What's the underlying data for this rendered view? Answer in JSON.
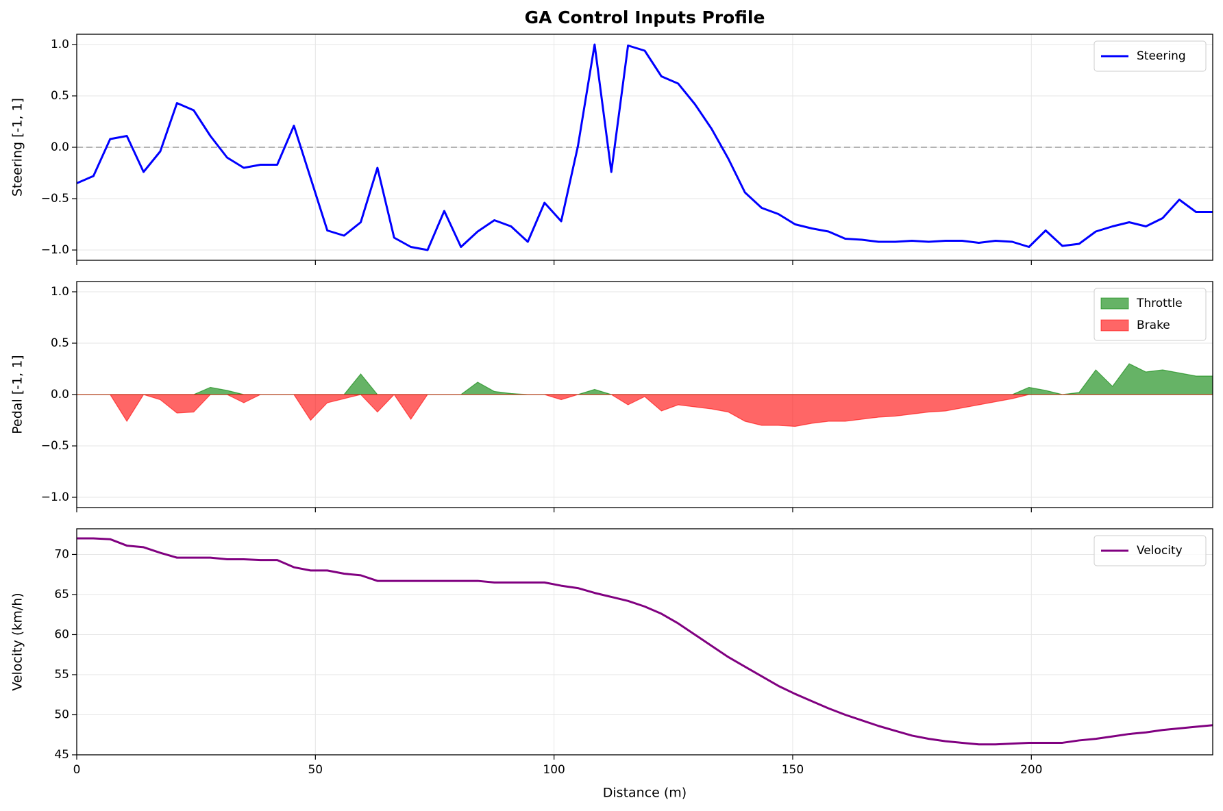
{
  "chart_data": [
    {
      "type": "line",
      "title": "GA Control Inputs Profile",
      "ylabel": "Steering [-1, 1]",
      "x": [
        0,
        3.5,
        7,
        10.5,
        14,
        17.5,
        21,
        24.5,
        28,
        31.5,
        35,
        38.5,
        42,
        45.5,
        49,
        52.5,
        56,
        59.5,
        63,
        66.5,
        70,
        73.5,
        77,
        80.5,
        84,
        87.5,
        91,
        94.5,
        98,
        101.5,
        105,
        108.5,
        112,
        115.5,
        119,
        122.5,
        126,
        129.5,
        133,
        136.5,
        140,
        143.5,
        147,
        150.5,
        154,
        157.5,
        161,
        164.5,
        168,
        171.5,
        175,
        178.5,
        182,
        185.5,
        189,
        192.5,
        196,
        199.5,
        203,
        206.5,
        210,
        213.5,
        217,
        220.5,
        224,
        227.5,
        231,
        234.5,
        238
      ],
      "series": [
        {
          "name": "Steering",
          "color": "#0000ff",
          "values": [
            -0.35,
            -0.28,
            0.08,
            0.11,
            -0.24,
            -0.04,
            0.43,
            0.36,
            0.11,
            -0.1,
            -0.2,
            -0.17,
            -0.17,
            0.21,
            -0.3,
            -0.81,
            -0.86,
            -0.73,
            -0.2,
            -0.88,
            -0.97,
            -1.0,
            -0.62,
            -0.97,
            -0.82,
            -0.71,
            -0.77,
            -0.92,
            -0.54,
            -0.72,
            0.01,
            1.0,
            -0.24,
            0.99,
            0.94,
            0.69,
            0.62,
            0.42,
            0.18,
            -0.11,
            -0.44,
            -0.59,
            -0.65,
            -0.75,
            -0.79,
            -0.82,
            -0.89,
            -0.9,
            -0.92,
            -0.92,
            -0.91,
            -0.92,
            -0.91,
            -0.91,
            -0.93,
            -0.91,
            -0.92,
            -0.97,
            -0.81,
            -0.96,
            -0.94,
            -0.82,
            -0.77,
            -0.73,
            -0.77,
            -0.69,
            -0.51,
            -0.63,
            -0.63
          ]
        }
      ],
      "xlim": [
        0,
        238
      ],
      "xticks": [
        0,
        50,
        100,
        150,
        200
      ],
      "ylim": [
        -1.1,
        1.1
      ],
      "yticks": [
        {
          "value": -1,
          "label": "−1.0"
        },
        {
          "value": -0.5,
          "label": "−0.5"
        },
        {
          "value": 0,
          "label": "0.0"
        },
        {
          "value": 0.5,
          "label": "0.5"
        },
        {
          "value": 1,
          "label": "1.0"
        }
      ],
      "reference_line": 0,
      "grid": true,
      "legend": "upper-right"
    },
    {
      "type": "area",
      "ylabel": "Pedal [-1, 1]",
      "x": [
        0,
        3.5,
        7,
        10.5,
        14,
        17.5,
        21,
        24.5,
        28,
        31.5,
        35,
        38.5,
        42,
        45.5,
        49,
        52.5,
        56,
        59.5,
        63,
        66.5,
        70,
        73.5,
        77,
        80.5,
        84,
        87.5,
        91,
        94.5,
        98,
        101.5,
        105,
        108.5,
        112,
        115.5,
        119,
        122.5,
        126,
        129.5,
        133,
        136.5,
        140,
        143.5,
        147,
        150.5,
        154,
        157.5,
        161,
        164.5,
        168,
        171.5,
        175,
        178.5,
        182,
        185.5,
        189,
        192.5,
        196,
        199.5,
        203,
        206.5,
        210,
        213.5,
        217,
        220.5,
        224,
        227.5,
        231,
        234.5,
        238
      ],
      "series": [
        {
          "name": "Throttle",
          "color": "#008000",
          "values": [
            0,
            0,
            0,
            0,
            0,
            0,
            0,
            0,
            0.07,
            0.04,
            0,
            0,
            0,
            0,
            0,
            0,
            0,
            0.2,
            0,
            0,
            0,
            0,
            0,
            0,
            0.12,
            0.03,
            0.01,
            0,
            0,
            0,
            0,
            0.05,
            0,
            0,
            0,
            0,
            0,
            0,
            0,
            0,
            0,
            0,
            0,
            0,
            0,
            0,
            0,
            0,
            0,
            0,
            0,
            0,
            0,
            0,
            0,
            0,
            0,
            0.07,
            0.04,
            0,
            0.02,
            0.24,
            0.08,
            0.3,
            0.22,
            0.24,
            0.21,
            0.18,
            0.18
          ]
        },
        {
          "name": "Brake",
          "color": "#ff0000",
          "values": [
            0,
            0,
            0,
            -0.26,
            0,
            -0.05,
            -0.18,
            -0.17,
            0,
            0,
            -0.08,
            0,
            0,
            0,
            -0.25,
            -0.08,
            -0.04,
            0,
            -0.17,
            0,
            -0.24,
            0,
            0,
            0,
            0,
            0,
            0,
            0,
            0,
            -0.05,
            0,
            0,
            0,
            -0.1,
            -0.02,
            -0.16,
            -0.1,
            -0.12,
            -0.14,
            -0.17,
            -0.26,
            -0.3,
            -0.3,
            -0.31,
            -0.28,
            -0.26,
            -0.26,
            -0.24,
            -0.22,
            -0.21,
            -0.19,
            -0.17,
            -0.16,
            -0.13,
            -0.1,
            -0.07,
            -0.04,
            0,
            0,
            0,
            0,
            0,
            0,
            0,
            0,
            0,
            0,
            0,
            0
          ]
        }
      ],
      "xlim": [
        0,
        238
      ],
      "xticks": [
        0,
        50,
        100,
        150,
        200
      ],
      "ylim": [
        -1.1,
        1.1
      ],
      "yticks": [
        {
          "value": -1,
          "label": "−1.0"
        },
        {
          "value": -0.5,
          "label": "−0.5"
        },
        {
          "value": 0,
          "label": "0.0"
        },
        {
          "value": 0.5,
          "label": "0.5"
        },
        {
          "value": 1,
          "label": "1.0"
        }
      ],
      "grid": true,
      "legend": "upper-right"
    },
    {
      "type": "line",
      "ylabel": "Velocity (km/h)",
      "xlabel": "Distance (m)",
      "x": [
        0,
        3.5,
        7,
        10.5,
        14,
        17.5,
        21,
        24.5,
        28,
        31.5,
        35,
        38.5,
        42,
        45.5,
        49,
        52.5,
        56,
        59.5,
        63,
        66.5,
        70,
        73.5,
        77,
        80.5,
        84,
        87.5,
        91,
        94.5,
        98,
        101.5,
        105,
        108.5,
        112,
        115.5,
        119,
        122.5,
        126,
        129.5,
        133,
        136.5,
        140,
        143.5,
        147,
        150.5,
        154,
        157.5,
        161,
        164.5,
        168,
        171.5,
        175,
        178.5,
        182,
        185.5,
        189,
        192.5,
        196,
        199.5,
        203,
        206.5,
        210,
        213.5,
        217,
        220.5,
        224,
        227.5,
        231,
        234.5,
        238
      ],
      "series": [
        {
          "name": "Velocity",
          "color": "#800080",
          "values": [
            72.0,
            72.0,
            71.9,
            71.1,
            70.9,
            70.2,
            69.6,
            69.6,
            69.6,
            69.4,
            69.4,
            69.3,
            69.3,
            68.4,
            68.0,
            68.0,
            67.6,
            67.4,
            66.7,
            66.7,
            66.7,
            66.7,
            66.7,
            66.7,
            66.7,
            66.5,
            66.5,
            66.5,
            66.5,
            66.1,
            65.8,
            65.2,
            64.7,
            64.2,
            63.5,
            62.6,
            61.4,
            60.0,
            58.6,
            57.2,
            56.0,
            54.8,
            53.6,
            52.6,
            51.7,
            50.8,
            50.0,
            49.3,
            48.6,
            48.0,
            47.4,
            47.0,
            46.7,
            46.5,
            46.3,
            46.3,
            46.4,
            46.5,
            46.5,
            46.5,
            46.8,
            47.0,
            47.3,
            47.6,
            47.8,
            48.1,
            48.3,
            48.5,
            48.7
          ]
        }
      ],
      "xlim": [
        0,
        238
      ],
      "xticks": [
        0,
        50,
        100,
        150,
        200
      ],
      "ylim": [
        45,
        73.2
      ],
      "yticks": [
        45,
        50,
        55,
        60,
        65,
        70
      ],
      "grid": true,
      "legend": "upper-right"
    }
  ]
}
